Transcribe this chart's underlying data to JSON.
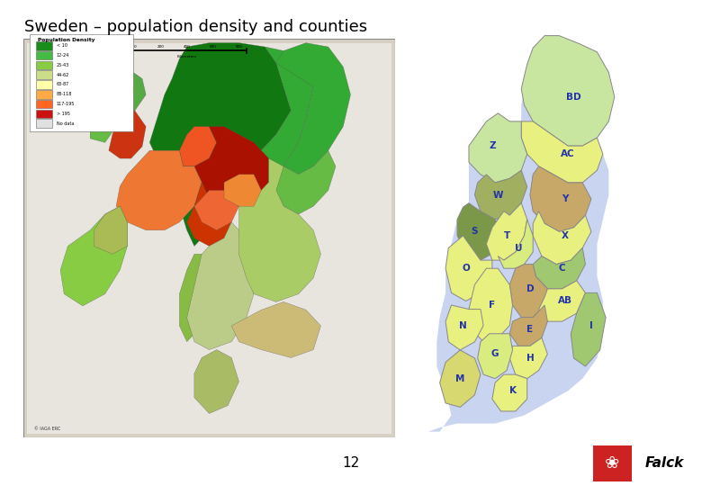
{
  "title": "Sweden – population density and counties",
  "page_number": "12",
  "bg_color": "#ffffff",
  "title_color": "#000000",
  "title_fontsize": 13,
  "separator_color": "#666666",
  "county_colors": {
    "BD": "#c8e6a0",
    "AC": "#e8f080",
    "Z": "#c8e6a0",
    "Y": "#c8a868",
    "X": "#e8f080",
    "W": "#a0b060",
    "S": "#7a9848",
    "T": "#e8f080",
    "U": "#d8ec80",
    "C": "#a0c870",
    "D": "#c8a868",
    "AB": "#e8f080",
    "O": "#e8f080",
    "E": "#c8a868",
    "F": "#e8f080",
    "H": "#e8f080",
    "N": "#e8f080",
    "G": "#d8ec80",
    "K": "#e8f080",
    "M": "#d8d870",
    "I": "#a0c870"
  },
  "label_color": "#2233aa",
  "label_fontsize": 7.5,
  "sea_color": "#c8d4f0",
  "land_outline": "#999999",
  "falck_text_color": "#000000",
  "falck_box_color": "#cc2222",
  "map_bg": "#e8e4dc",
  "map_border": "#888888",
  "legend_density_ranges": [
    "< 10",
    "12-24",
    "25-43",
    "44-62",
    "63-87",
    "88-118",
    "117-195",
    "  > 195",
    "No data"
  ],
  "legend_density_colors": [
    "#1a8c1a",
    "#44bb44",
    "#88cc44",
    "#ccdd88",
    "#ffffaa",
    "#ffaa44",
    "#ff6622",
    "#cc1111",
    "#e0e0e0"
  ]
}
